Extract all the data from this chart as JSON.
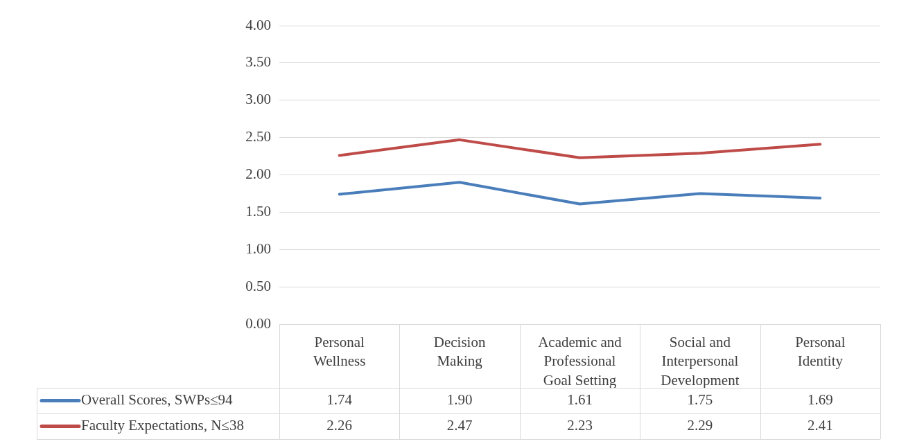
{
  "chart_data": {
    "type": "line",
    "categories": [
      "Personal Wellness",
      "Decision Making",
      "Academic and Professional Goal Setting",
      "Social and Interpersonal Development",
      "Personal Identity"
    ],
    "series": [
      {
        "name": "Overall Scores, SWPs≤94",
        "color": "#4a7ebb",
        "values": [
          1.74,
          1.9,
          1.61,
          1.75,
          1.69
        ],
        "value_labels": [
          "1.74",
          "1.90",
          "1.61",
          "1.75",
          "1.69"
        ]
      },
      {
        "name": "Faculty Expectations, N≤38",
        "color": "#be4b48",
        "values": [
          2.26,
          2.47,
          2.23,
          2.29,
          2.41
        ],
        "value_labels": [
          "2.26",
          "2.47",
          "2.23",
          "2.29",
          "2.41"
        ]
      }
    ],
    "ylim": [
      0,
      4
    ],
    "yticks": [
      {
        "value": 0,
        "label": "0.00"
      },
      {
        "value": 0.5,
        "label": "0.50"
      },
      {
        "value": 1,
        "label": "1.00"
      },
      {
        "value": 1.5,
        "label": "1.50"
      },
      {
        "value": 2,
        "label": "2.00"
      },
      {
        "value": 2.5,
        "label": "2.50"
      },
      {
        "value": 3,
        "label": "3.00"
      },
      {
        "value": 3.5,
        "label": "3.50"
      },
      {
        "value": 4,
        "label": "4.00"
      }
    ],
    "grid": "y",
    "legend": "bottom",
    "marker": "none",
    "line_style": "solid"
  }
}
